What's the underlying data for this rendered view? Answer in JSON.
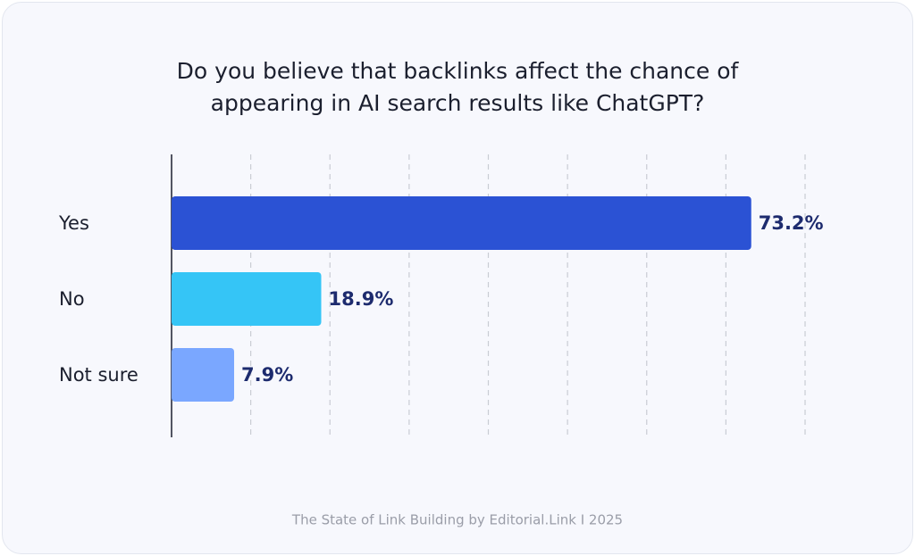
{
  "chart_data": {
    "type": "hbar",
    "title": "Do you believe that backlinks affect the chance of appearing in AI search results like ChatGPT?",
    "categories": [
      "Yes",
      "No",
      "Not sure"
    ],
    "values": [
      73.2,
      18.9,
      7.9
    ],
    "value_labels": [
      "73.2%",
      "18.9%",
      "7.9%"
    ],
    "colors": [
      "#2b52d4",
      "#35c5f6",
      "#7aa7ff"
    ],
    "value_label_color": "#1d2b6e",
    "xlim": [
      0,
      80
    ],
    "xticks": [
      10,
      20,
      30,
      40,
      50,
      60,
      70,
      80
    ],
    "grid": true,
    "source": "The State of Link Building by Editorial.Link I 2025"
  }
}
